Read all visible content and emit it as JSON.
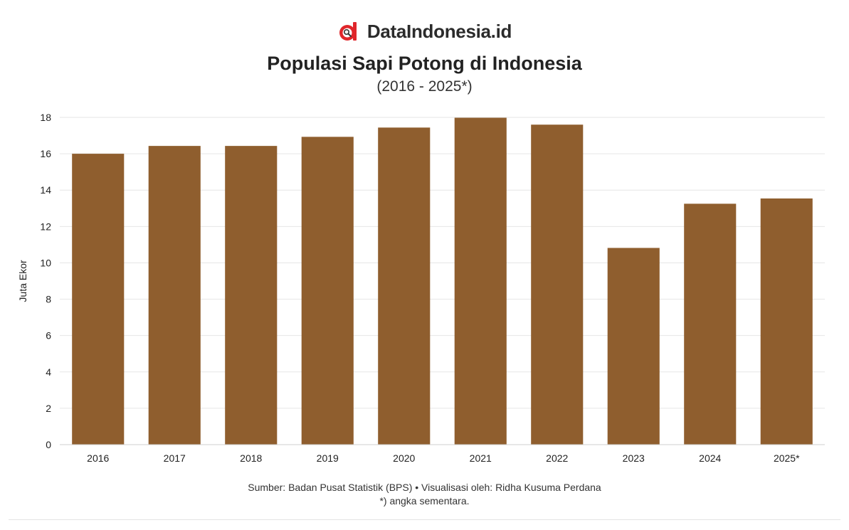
{
  "brand": {
    "name": "DataIndonesia.id",
    "logo_icon": "dataindonesia-logo-icon",
    "logo_color": "#e0262b"
  },
  "chart_data": {
    "type": "bar",
    "title": "Populasi Sapi Potong di Indonesia",
    "subtitle": "(2016 - 2025*)",
    "xlabel": "",
    "ylabel": "Juta Ekor",
    "categories": [
      "2016",
      "2017",
      "2018",
      "2019",
      "2020",
      "2021",
      "2022",
      "2023",
      "2024",
      "2025*"
    ],
    "values": [
      16.0,
      16.43,
      16.43,
      16.93,
      17.44,
      17.98,
      17.6,
      10.82,
      13.25,
      13.54
    ],
    "ylim": [
      0,
      18
    ],
    "yticks": [
      "0",
      "2",
      "4",
      "6",
      "8",
      "10",
      "12",
      "14",
      "16",
      "18"
    ],
    "grid": true,
    "legend": "none",
    "bar_color": "#8f5e2e"
  },
  "footer": {
    "source": "Sumber: Badan Pusat Statistik (BPS) • Visualisasi oleh: Ridha Kusuma Perdana",
    "note": "*) angka sementara."
  }
}
